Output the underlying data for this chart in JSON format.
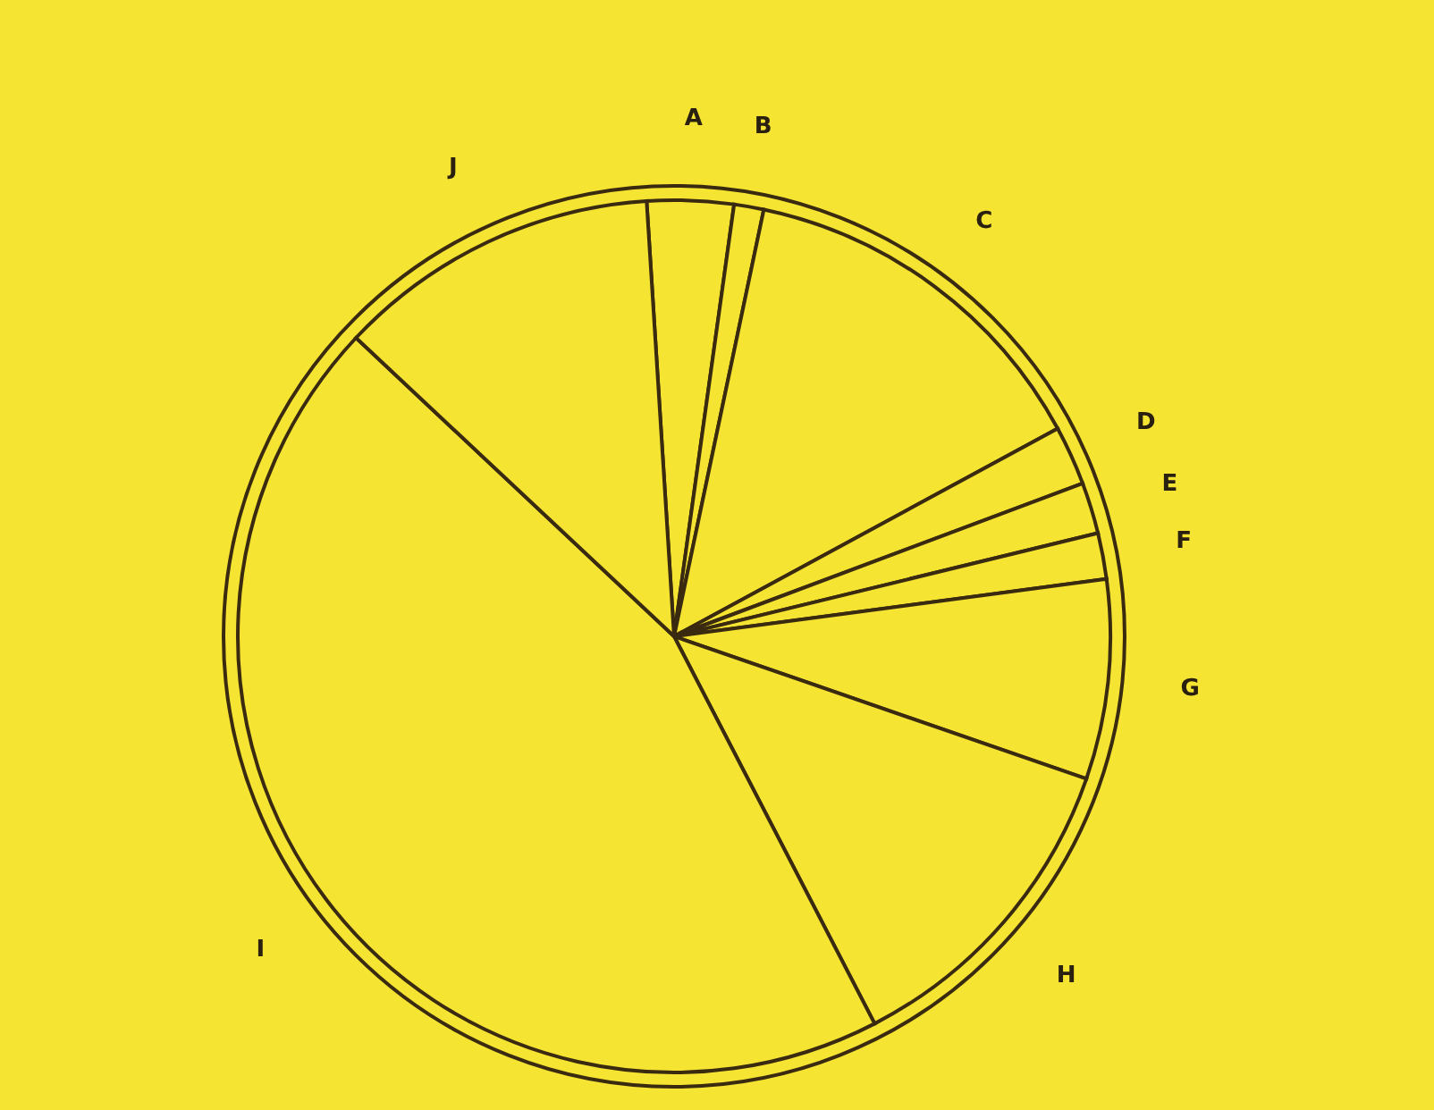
{
  "chart_data": {
    "type": "pie",
    "categories": [
      "A",
      "B",
      "C",
      "D",
      "E",
      "F",
      "G",
      "H",
      "I",
      "J"
    ],
    "values": [
      3.2,
      1.1,
      13.8,
      2.2,
      1.9,
      1.7,
      7.4,
      12.1,
      44.6,
      12.0
    ],
    "colors": [
      "#f5e431",
      "#f5e431",
      "#f5e431",
      "#f5e431",
      "#f5e431",
      "#f5e431",
      "#f5e431",
      "#f5e431",
      "#f5e431",
      "#f5e431"
    ]
  }
}
